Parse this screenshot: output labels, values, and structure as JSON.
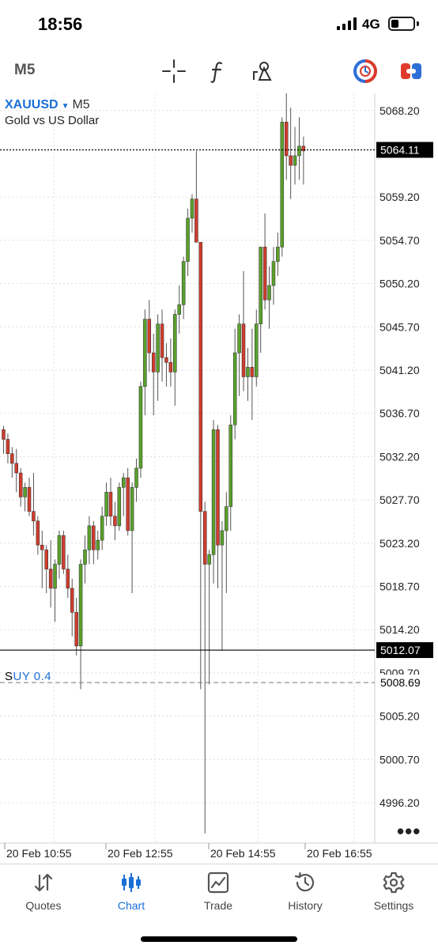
{
  "status_bar": {
    "time": "18:56",
    "network": "4G",
    "battery_level": 0.35
  },
  "toolbar": {
    "timeframe": "M5"
  },
  "chart_header": {
    "symbol": "XAUUSD",
    "timeframe": "M5",
    "description": "Gold vs US Dollar"
  },
  "trade_line": {
    "label_prefix": "S",
    "label": "UY 0.4"
  },
  "colors": {
    "bull": "#5aa02c",
    "bear": "#cf3d2e",
    "wick": "#555555",
    "accent": "#1a6fd6"
  },
  "chart_data": {
    "type": "candlestick",
    "symbol": "XAUUSD",
    "description": "Gold vs US Dollar",
    "timeframe": "M5",
    "y_ticks": [
      "5068.20",
      "5059.20",
      "5054.70",
      "5050.20",
      "5045.70",
      "5041.20",
      "5036.70",
      "5032.20",
      "5027.70",
      "5023.20",
      "5018.70",
      "5014.20",
      "5009.70",
      "5005.20",
      "5000.70",
      "4996.20"
    ],
    "x_ticks": [
      "20 Feb 10:55",
      "20 Feb 12:55",
      "20 Feb 14:55",
      "20 Feb 16:55"
    ],
    "ylim": [
      4992.0,
      5069.5
    ],
    "current_price": "5064.11",
    "bid_line": "5012.07",
    "order_price": "5008.69",
    "grid": true,
    "candles": [
      [
        5035.0,
        5035.4,
        5032.5,
        5034.0
      ],
      [
        5034.0,
        5034.6,
        5031.5,
        5032.5
      ],
      [
        5032.5,
        5033.2,
        5030.0,
        5031.5
      ],
      [
        5031.5,
        5033.0,
        5028.5,
        5030.5
      ],
      [
        5030.5,
        5031.0,
        5027.0,
        5028.0
      ],
      [
        5028.0,
        5029.5,
        5026.5,
        5029.0
      ],
      [
        5029.0,
        5030.0,
        5026.0,
        5026.5
      ],
      [
        5026.5,
        5030.5,
        5024.0,
        5025.5
      ],
      [
        5025.5,
        5026.0,
        5022.0,
        5023.0
      ],
      [
        5023.0,
        5024.5,
        5018.5,
        5022.5
      ],
      [
        5022.5,
        5023.0,
        5018.0,
        5020.5
      ],
      [
        5020.5,
        5023.5,
        5016.5,
        5018.5
      ],
      [
        5018.5,
        5021.5,
        5015.0,
        5021.0
      ],
      [
        5021.0,
        5024.5,
        5019.5,
        5024.0
      ],
      [
        5024.0,
        5024.5,
        5020.0,
        5020.5
      ],
      [
        5020.5,
        5022.0,
        5017.5,
        5018.5
      ],
      [
        5018.5,
        5019.5,
        5013.5,
        5016.0
      ],
      [
        5016.0,
        5017.5,
        5011.5,
        5012.5
      ],
      [
        5012.5,
        5021.5,
        5008.0,
        5021.0
      ],
      [
        5021.0,
        5024.0,
        5019.0,
        5022.5
      ],
      [
        5022.5,
        5026.0,
        5021.0,
        5025.0
      ],
      [
        5025.0,
        5025.5,
        5021.0,
        5022.5
      ],
      [
        5022.5,
        5024.5,
        5021.5,
        5023.5
      ],
      [
        5023.5,
        5027.0,
        5022.5,
        5026.0
      ],
      [
        5026.0,
        5029.5,
        5025.0,
        5028.5
      ],
      [
        5028.5,
        5030.0,
        5025.0,
        5026.0
      ],
      [
        5026.0,
        5027.5,
        5023.5,
        5025.0
      ],
      [
        5025.0,
        5029.5,
        5024.5,
        5029.0
      ],
      [
        5029.0,
        5030.5,
        5026.0,
        5030.0
      ],
      [
        5030.0,
        5031.0,
        5024.0,
        5024.5
      ],
      [
        5024.5,
        5029.5,
        5018.0,
        5029.0
      ],
      [
        5029.0,
        5032.0,
        5027.5,
        5031.0
      ],
      [
        5031.0,
        5040.0,
        5030.0,
        5039.5
      ],
      [
        5039.5,
        5047.5,
        5036.5,
        5046.5
      ],
      [
        5046.5,
        5048.5,
        5041.0,
        5043.0
      ],
      [
        5043.0,
        5045.0,
        5036.5,
        5041.0
      ],
      [
        5041.0,
        5047.0,
        5038.0,
        5046.0
      ],
      [
        5046.0,
        5047.5,
        5040.0,
        5042.5
      ],
      [
        5042.5,
        5044.0,
        5039.5,
        5042.0
      ],
      [
        5042.0,
        5044.5,
        5039.5,
        5041.0
      ],
      [
        5041.0,
        5047.5,
        5037.5,
        5047.0
      ],
      [
        5047.0,
        5050.0,
        5045.0,
        5048.0
      ],
      [
        5048.0,
        5053.0,
        5046.5,
        5052.5
      ],
      [
        5052.5,
        5058.0,
        5051.0,
        5057.0
      ],
      [
        5057.0,
        5059.5,
        5055.5,
        5059.0
      ],
      [
        5059.0,
        5064.0,
        5054.5,
        5054.5
      ],
      [
        5054.5,
        5054.5,
        5008.0,
        5026.5
      ],
      [
        5026.5,
        5027.5,
        4993.0,
        5021.0
      ],
      [
        5021.0,
        5022.5,
        5008.5,
        5022.0
      ],
      [
        5022.0,
        5036.0,
        5019.0,
        5035.0
      ],
      [
        5035.0,
        5035.5,
        5018.5,
        5023.0
      ],
      [
        5023.0,
        5025.5,
        5012.0,
        5024.5
      ],
      [
        5024.5,
        5028.5,
        5018.0,
        5027.0
      ],
      [
        5027.0,
        5036.5,
        5024.5,
        5035.5
      ],
      [
        5035.5,
        5045.5,
        5034.0,
        5043.0
      ],
      [
        5043.0,
        5047.0,
        5038.5,
        5046.0
      ],
      [
        5046.0,
        5051.5,
        5039.0,
        5040.5
      ],
      [
        5040.5,
        5043.5,
        5038.0,
        5041.5
      ],
      [
        5041.5,
        5045.5,
        5036.0,
        5040.5
      ],
      [
        5040.5,
        5047.5,
        5039.5,
        5046.0
      ],
      [
        5046.0,
        5053.5,
        5043.0,
        5054.0
      ],
      [
        5054.0,
        5057.5,
        5047.5,
        5048.5
      ],
      [
        5048.5,
        5052.0,
        5045.5,
        5050.0
      ],
      [
        5050.0,
        5054.0,
        5048.0,
        5052.5
      ],
      [
        5052.5,
        5055.5,
        5051.0,
        5054.0
      ],
      [
        5054.0,
        5067.5,
        5053.0,
        5067.0
      ],
      [
        5067.0,
        5070.0,
        5061.0,
        5063.5
      ],
      [
        5063.5,
        5068.5,
        5059.0,
        5062.5
      ],
      [
        5062.5,
        5066.5,
        5060.5,
        5063.5
      ],
      [
        5063.5,
        5067.5,
        5061.0,
        5064.5
      ],
      [
        5064.5,
        5065.5,
        5060.5,
        5064.0
      ]
    ]
  },
  "tabs": [
    {
      "label": "Quotes",
      "icon": "quotes-arrows-icon",
      "active": false
    },
    {
      "label": "Chart",
      "icon": "candles-icon",
      "active": true
    },
    {
      "label": "Trade",
      "icon": "trade-chart-icon",
      "active": false
    },
    {
      "label": "History",
      "icon": "history-clock-icon",
      "active": false
    },
    {
      "label": "Settings",
      "icon": "gear-icon",
      "active": false
    }
  ]
}
